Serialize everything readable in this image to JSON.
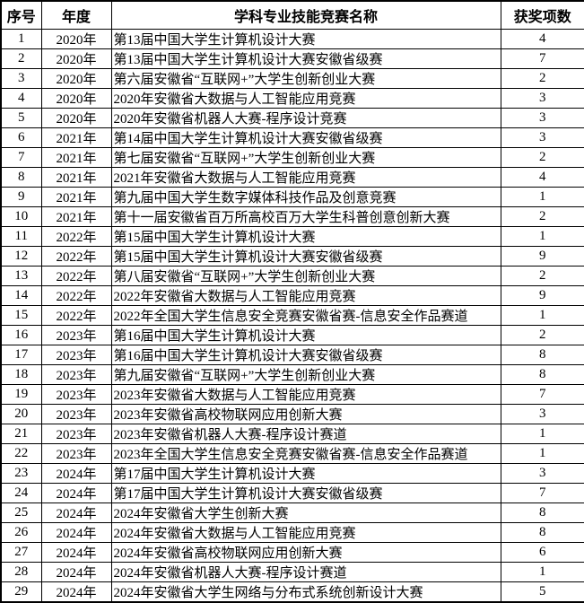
{
  "table": {
    "headers": {
      "index": "序号",
      "year": "年度",
      "name": "学科专业技能竞赛名称",
      "count": "获奖项数"
    },
    "rows": [
      {
        "index": "1",
        "year": "2020年",
        "name": "第13届中国大学生计算机设计大赛",
        "count": "4"
      },
      {
        "index": "2",
        "year": "2020年",
        "name": "第13届中国大学生计算机设计大赛安徽省级赛",
        "count": "7"
      },
      {
        "index": "3",
        "year": "2020年",
        "name": "第六届安徽省“互联网+”大学生创新创业大赛",
        "count": "2"
      },
      {
        "index": "4",
        "year": "2020年",
        "name": "2020年安徽省大数据与人工智能应用竞赛",
        "count": "3"
      },
      {
        "index": "5",
        "year": "2020年",
        "name": "2020年安徽省机器人大赛-程序设计竞赛",
        "count": "3"
      },
      {
        "index": "6",
        "year": "2021年",
        "name": "第14届中国大学生计算机设计大赛安徽省级赛",
        "count": "3"
      },
      {
        "index": "7",
        "year": "2021年",
        "name": "第七届安徽省“互联网+”大学生创新创业大赛",
        "count": "2"
      },
      {
        "index": "8",
        "year": "2021年",
        "name": "2021年安徽省大数据与人工智能应用竞赛",
        "count": "4"
      },
      {
        "index": "9",
        "year": "2021年",
        "name": "第九届中国大学生数字媒体科技作品及创意竞赛",
        "count": "1"
      },
      {
        "index": "10",
        "year": "2021年",
        "name": "第十一届安徽省百万所高校百万大学生科普创意创新大赛",
        "count": "2"
      },
      {
        "index": "11",
        "year": "2022年",
        "name": "第15届中国大学生计算机设计大赛",
        "count": "1"
      },
      {
        "index": "12",
        "year": "2022年",
        "name": "第15届中国大学生计算机设计大赛安徽省级赛",
        "count": "9"
      },
      {
        "index": "13",
        "year": "2022年",
        "name": "第八届安徽省“互联网+”大学生创新创业大赛",
        "count": "2"
      },
      {
        "index": "14",
        "year": "2022年",
        "name": "2022年安徽省大数据与人工智能应用竞赛",
        "count": "9"
      },
      {
        "index": "15",
        "year": "2022年",
        "name": "2022年全国大学生信息安全竞赛安徽省赛-信息安全作品赛道",
        "count": "1"
      },
      {
        "index": "16",
        "year": "2023年",
        "name": "第16届中国大学生计算机设计大赛",
        "count": "2"
      },
      {
        "index": "17",
        "year": "2023年",
        "name": "第16届中国大学生计算机设计大赛安徽省级赛",
        "count": "8"
      },
      {
        "index": "18",
        "year": "2023年",
        "name": "第九届安徽省“互联网+”大学生创新创业大赛",
        "count": "8"
      },
      {
        "index": "19",
        "year": "2023年",
        "name": "2023年安徽省大数据与人工智能应用竞赛",
        "count": "7"
      },
      {
        "index": "20",
        "year": "2023年",
        "name": "2023年安徽省高校物联网应用创新大赛",
        "count": "3"
      },
      {
        "index": "21",
        "year": "2023年",
        "name": "2023年安徽省机器人大赛-程序设计赛道",
        "count": "1"
      },
      {
        "index": "22",
        "year": "2023年",
        "name": "2023年全国大学生信息安全竞赛安徽省赛-信息安全作品赛道",
        "count": "1"
      },
      {
        "index": "23",
        "year": "2024年",
        "name": "第17届中国大学生计算机设计大赛",
        "count": "3"
      },
      {
        "index": "24",
        "year": "2024年",
        "name": "第17届中国大学生计算机设计大赛安徽省级赛",
        "count": "7"
      },
      {
        "index": "25",
        "year": "2024年",
        "name": "2024年安徽省大学生创新大赛",
        "count": "8"
      },
      {
        "index": "26",
        "year": "2024年",
        "name": "2024年安徽省大数据与人工智能应用竞赛",
        "count": "8"
      },
      {
        "index": "27",
        "year": "2024年",
        "name": "2024年安徽省高校物联网应用创新大赛",
        "count": "6"
      },
      {
        "index": "28",
        "year": "2024年",
        "name": "2024年安徽省机器人大赛-程序设计赛道",
        "count": "1"
      },
      {
        "index": "29",
        "year": "2024年",
        "name": "2024年安徽省大学生网络与分布式系统创新设计大赛",
        "count": "5"
      }
    ]
  },
  "colors": {
    "text": "#000000",
    "border": "#000000",
    "background": "#ffffff"
  }
}
